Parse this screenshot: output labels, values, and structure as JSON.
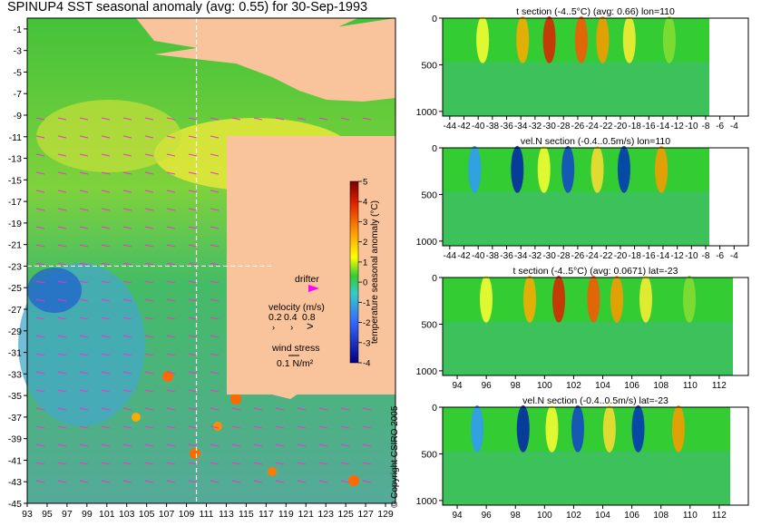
{
  "main_title": "SPINUP4 SST seasonal anomaly (avg: 0.55) for 30-Sep-1993",
  "copyright": "© Copyright CSIRO 2005",
  "colors": {
    "land": "#f9c39b",
    "sea_bg": "#33cc33",
    "hot": "#ff2200",
    "cold": "#1e46c8",
    "arrow": "#ee33cc",
    "drifter": "#ff00ff"
  },
  "chart_data": [
    {
      "type": "heatmap",
      "name": "map",
      "x_ticks": [
        93,
        95,
        97,
        99,
        101,
        103,
        105,
        107,
        109,
        111,
        113,
        115,
        117,
        119,
        121,
        123,
        125,
        127,
        129
      ],
      "y_ticks": [
        -1,
        -3,
        -5,
        -7,
        -9,
        -11,
        -13,
        -15,
        -17,
        -19,
        -21,
        -23,
        -25,
        -27,
        -29,
        -31,
        -33,
        -35,
        -37,
        -39,
        -41,
        -43,
        -45
      ],
      "xlim": [
        93,
        130
      ],
      "ylim": [
        -45,
        0
      ],
      "section_lon": 110,
      "section_lat": -23,
      "colorbar": {
        "label": "temperature seasonal anomaly (°C)",
        "ticks": [
          5,
          4,
          3,
          2,
          1,
          0,
          -1,
          -2,
          -3,
          -4
        ],
        "range": [
          -4,
          5
        ]
      },
      "legend": {
        "drifter_label": "drifter",
        "velocity_label": "velocity (m/s)",
        "velocity_values": [
          "0.2",
          "0.4",
          "0.8"
        ],
        "wind_label": "wind stress",
        "wind_value": "0.1 N/m²"
      }
    },
    {
      "type": "heatmap",
      "name": "t-section-lon110",
      "title": "t section (-4..5°C) (avg: 0.66) lon=110",
      "x_ticks": [
        "-44",
        "-42",
        "-40",
        "-38",
        "-36",
        "-34",
        "-32",
        "-30",
        "-28",
        "-26",
        "-24",
        "-22",
        "-20",
        "-18",
        "-16",
        "-14",
        "-12",
        "-10",
        "-8",
        "-6",
        "-4"
      ],
      "y_ticks": [
        0,
        500,
        1000
      ],
      "xlim": [
        -45,
        -2
      ],
      "ylim": [
        1050,
        0
      ]
    },
    {
      "type": "heatmap",
      "name": "veln-section-lon110",
      "title": "vel.N section (-0.4..0.5m/s) lon=110",
      "x_ticks": [
        "-44",
        "-42",
        "-40",
        "-38",
        "-36",
        "-34",
        "-32",
        "-30",
        "-28",
        "-26",
        "-24",
        "-22",
        "-20",
        "-18",
        "-16",
        "-14",
        "-12",
        "-10",
        "-8",
        "-6",
        "-4"
      ],
      "y_ticks": [
        0,
        500,
        1000
      ],
      "xlim": [
        -45,
        -2
      ],
      "ylim": [
        1050,
        0
      ]
    },
    {
      "type": "heatmap",
      "name": "t-section-lat-23",
      "title": "t section (-4..5°C) (avg: 0.0671) lat=-23",
      "x_ticks": [
        "94",
        "96",
        "98",
        "100",
        "102",
        "104",
        "106",
        "108",
        "110",
        "112"
      ],
      "y_ticks": [
        0,
        500,
        1000
      ],
      "xlim": [
        93,
        114
      ],
      "ylim": [
        1050,
        0
      ]
    },
    {
      "type": "heatmap",
      "name": "veln-section-lat-23",
      "title": "vel.N section (-0.4..0.5m/s) lat=-23",
      "x_ticks": [
        "94",
        "96",
        "98",
        "100",
        "102",
        "104",
        "106",
        "108",
        "110",
        "112"
      ],
      "y_ticks": [
        0,
        500,
        1000
      ],
      "xlim": [
        93,
        114
      ],
      "ylim": [
        1050,
        0
      ]
    }
  ]
}
